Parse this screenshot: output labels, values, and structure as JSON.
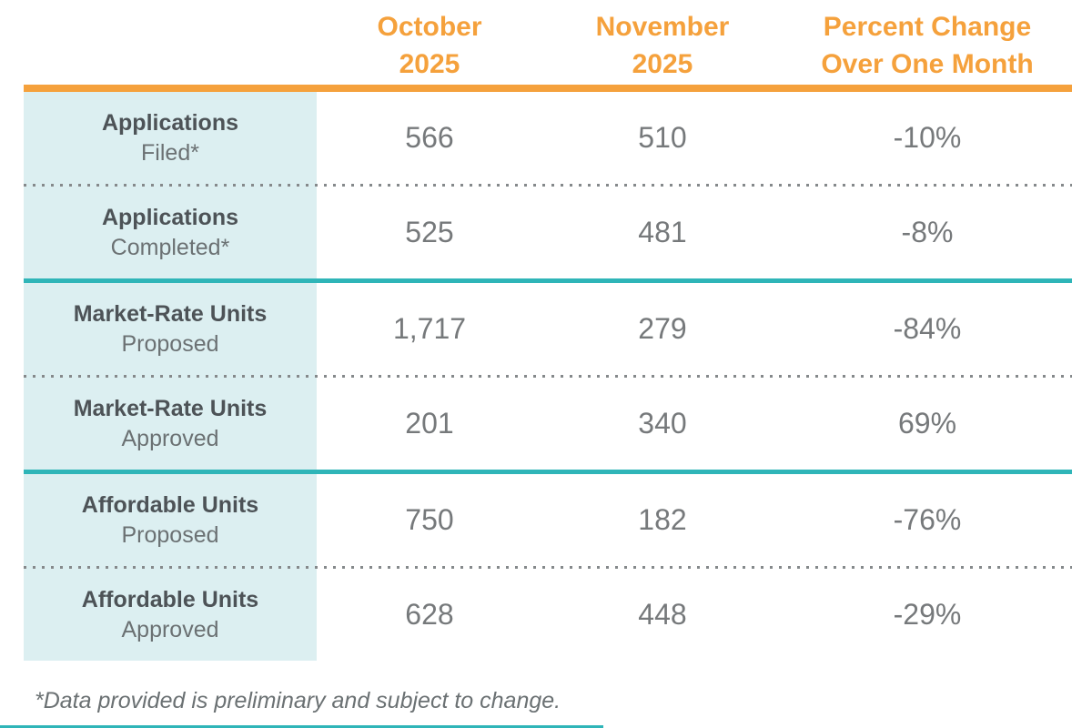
{
  "colors": {
    "accent_orange": "#F5A13C",
    "accent_teal": "#2FB5B8",
    "label_column_bg": "#DCEFF1",
    "label_bold_text": "#4D5357",
    "body_text": "#6B7173",
    "number_text": "#76797B"
  },
  "table": {
    "column_headers": [
      {
        "line1": "October",
        "line2": "2025"
      },
      {
        "line1": "November",
        "line2": "2025"
      },
      {
        "line1": "Percent Change",
        "line2": "Over One Month"
      }
    ],
    "footnote": "*Data provided is preliminary and subject to change."
  },
  "chart_data": {
    "type": "table",
    "title": "",
    "columns": [
      "October 2025",
      "November 2025",
      "Percent Change Over One Month"
    ],
    "rows": [
      {
        "label": "Applications",
        "sublabel": "Filed*",
        "october_2025": "566",
        "november_2025": "510",
        "percent_change": "-10%",
        "separator_after": "dotted"
      },
      {
        "label": "Applications",
        "sublabel": "Completed*",
        "october_2025": "525",
        "november_2025": "481",
        "percent_change": "-8%",
        "separator_after": "solid"
      },
      {
        "label": "Market-Rate Units",
        "sublabel": "Proposed",
        "october_2025": "1,717",
        "november_2025": "279",
        "percent_change": "-84%",
        "separator_after": "dotted"
      },
      {
        "label": "Market-Rate Units",
        "sublabel": "Approved",
        "october_2025": "201",
        "november_2025": "340",
        "percent_change": "69%",
        "separator_after": "solid"
      },
      {
        "label": "Affordable Units",
        "sublabel": "Proposed",
        "october_2025": "750",
        "november_2025": "182",
        "percent_change": "-76%",
        "separator_after": "dotted"
      },
      {
        "label": "Affordable Units",
        "sublabel": "Approved",
        "october_2025": "628",
        "november_2025": "448",
        "percent_change": "-29%",
        "separator_after": "none"
      }
    ],
    "footnote": "*Data provided is preliminary and subject to change."
  }
}
